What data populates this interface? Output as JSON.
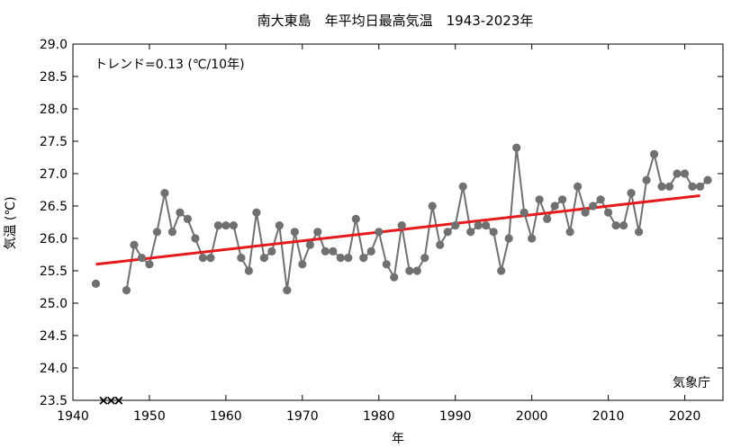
{
  "chart_data": {
    "type": "line",
    "title": "南大東島　年平均日最高気温　1943-2023年",
    "xlabel": "年",
    "ylabel": "気温 (℃)",
    "xlim": [
      1940,
      2025
    ],
    "ylim": [
      23.5,
      29.0
    ],
    "xticks": [
      1940,
      1950,
      1960,
      1970,
      1980,
      1990,
      2000,
      2010,
      2020
    ],
    "yticks": [
      23.5,
      24.0,
      24.5,
      25.0,
      25.5,
      26.0,
      26.5,
      27.0,
      27.5,
      28.0,
      28.5,
      29.0
    ],
    "grid": false,
    "trend_label": "トレンド=0.13 (℃/10年)",
    "source_label": "気象庁",
    "colors": {
      "series": "#707070",
      "trend": "#e41a1c"
    },
    "missing_marker": "×",
    "missing_years": [
      1944,
      1945,
      1946
    ],
    "series": [
      {
        "x": [
          1943
        ],
        "y": [
          25.3
        ]
      },
      {
        "x": [
          1947,
          1948,
          1949,
          1950,
          1951,
          1952,
          1953,
          1954,
          1955,
          1956,
          1957,
          1958,
          1959,
          1960,
          1961,
          1962,
          1963,
          1964,
          1965,
          1966,
          1967,
          1968,
          1969,
          1970,
          1971,
          1972,
          1973,
          1974,
          1975,
          1976,
          1977,
          1978,
          1979,
          1980,
          1981,
          1982,
          1983,
          1984,
          1985,
          1986,
          1987,
          1988,
          1989,
          1990,
          1991,
          1992,
          1993,
          1994,
          1995,
          1996,
          1997,
          1998,
          1999,
          2000,
          2001,
          2002,
          2003,
          2004,
          2005,
          2006,
          2007,
          2008,
          2009,
          2010,
          2011,
          2012,
          2013,
          2014,
          2015,
          2016,
          2017,
          2018,
          2019,
          2020,
          2021,
          2022,
          2023
        ],
        "y": [
          25.2,
          25.9,
          25.7,
          25.6,
          26.1,
          26.7,
          26.1,
          26.4,
          26.3,
          26.0,
          25.7,
          25.7,
          26.2,
          26.2,
          26.2,
          25.7,
          25.5,
          26.4,
          25.7,
          25.8,
          26.2,
          25.2,
          26.1,
          25.6,
          25.9,
          26.1,
          25.8,
          25.8,
          25.7,
          25.7,
          26.3,
          25.7,
          25.8,
          26.1,
          25.6,
          25.4,
          26.2,
          25.5,
          25.5,
          25.7,
          26.5,
          25.9,
          26.1,
          26.2,
          26.8,
          26.1,
          26.2,
          26.2,
          26.1,
          25.5,
          26.0,
          27.4,
          26.4,
          26.0,
          26.6,
          26.3,
          26.5,
          26.6,
          26.1,
          26.8,
          26.4,
          26.5,
          26.6,
          26.4,
          26.2,
          26.2,
          26.7,
          26.1,
          26.9,
          27.3,
          26.8,
          26.8,
          27.0,
          27.0,
          26.8,
          26.8,
          26.9
        ]
      }
    ],
    "trend": {
      "x": [
        1943,
        2022
      ],
      "y": [
        25.6,
        26.66
      ]
    }
  }
}
